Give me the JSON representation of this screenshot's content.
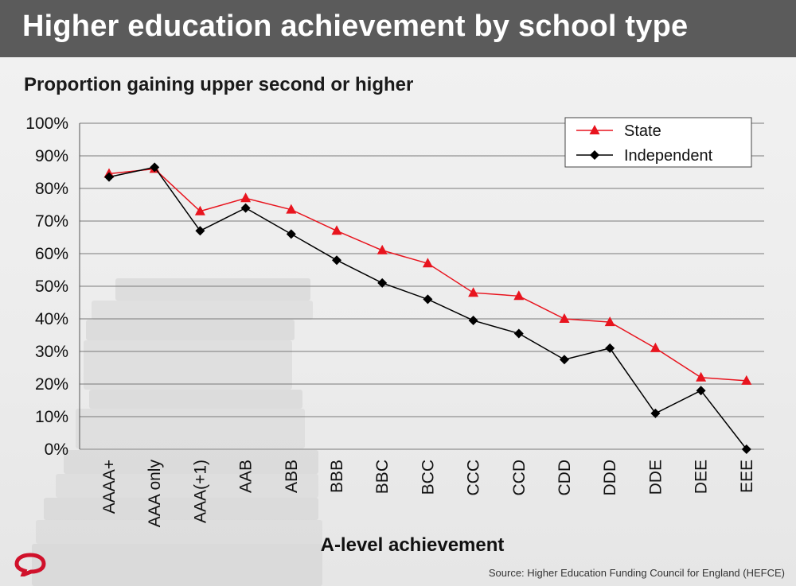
{
  "header": {
    "title": "Higher education achievement by school type"
  },
  "source_text": "Source: Higher Education Funding Council for England (HEFCE)",
  "colors": {
    "state": "#e8141e",
    "independent": "#000000",
    "title_bar": "#5b5b5b",
    "logo": "#d0112b"
  },
  "chart_data": {
    "type": "line",
    "title": "Higher education achievement by school type",
    "subtitle": "Proportion gaining upper second or higher",
    "xlabel": "A-level achievement",
    "ylabel": "",
    "ylim": [
      0,
      100
    ],
    "y_ticks": [
      0,
      10,
      20,
      30,
      40,
      50,
      60,
      70,
      80,
      90,
      100
    ],
    "y_tick_format": "%",
    "grid": true,
    "legend_position": "top-right",
    "categories": [
      "AAAA+",
      "AAA only",
      "AAA(+1)",
      "AAB",
      "ABB",
      "BBB",
      "BBC",
      "BCC",
      "CCC",
      "CCD",
      "CDD",
      "DDD",
      "DDE",
      "DEE",
      "EEE"
    ],
    "series": [
      {
        "name": "State",
        "marker": "triangle",
        "color": "#e8141e",
        "values": [
          84.5,
          86,
          73,
          77,
          73.5,
          67,
          61,
          57,
          48,
          47,
          40,
          39,
          31,
          22,
          21
        ]
      },
      {
        "name": "Independent",
        "marker": "diamond",
        "color": "#000000",
        "values": [
          83.5,
          86.5,
          67,
          74,
          66,
          58,
          51,
          46,
          39.5,
          35.5,
          27.5,
          31,
          11,
          18,
          0
        ]
      }
    ]
  }
}
